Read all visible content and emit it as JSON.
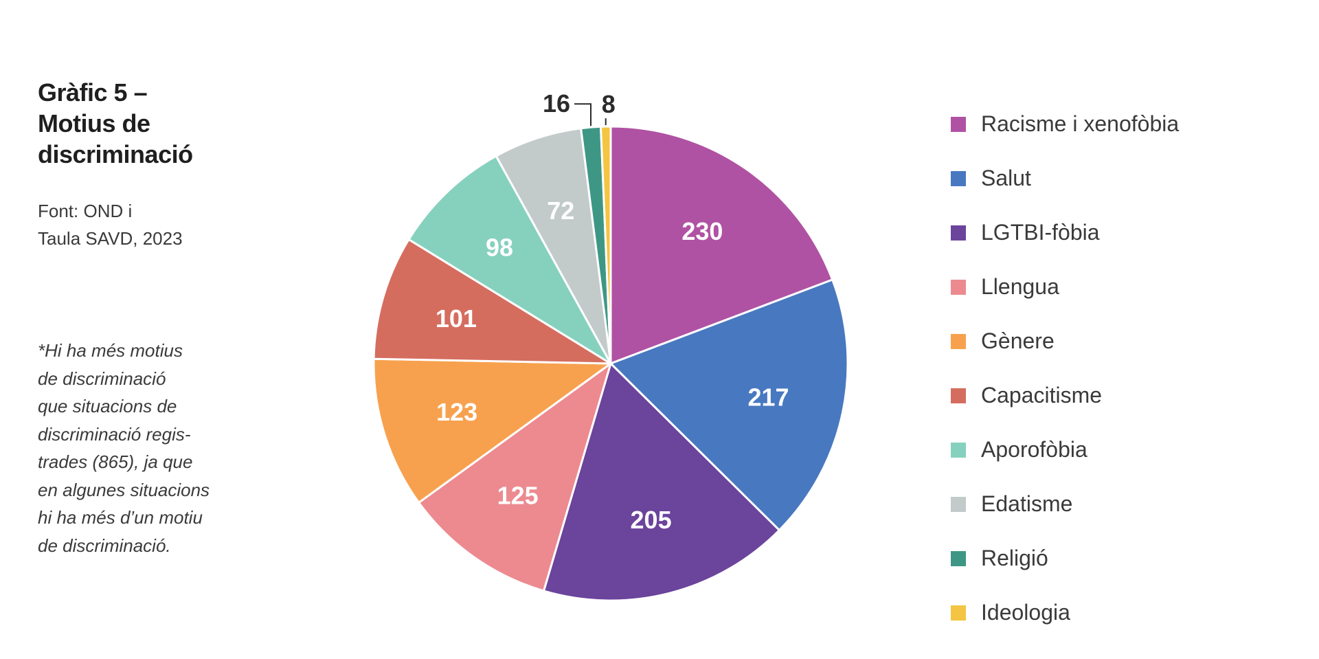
{
  "title_lines": [
    "Gràfic 5 –",
    "Motius de",
    "discriminació"
  ],
  "source_lines": [
    "Font: OND i",
    "Taula SAVD, 2023"
  ],
  "note_lines": [
    "*Hi ha més motius",
    "de discriminació",
    "que situacions de",
    "discriminació regis-",
    "trades (865), ja que",
    "en algunes situacions",
    "hi ha més d’un motiu",
    "de discriminació."
  ],
  "chart_data": {
    "type": "pie",
    "title": "Motius de discriminació",
    "start": "12 o'clock, clockwise",
    "legend_position": "right",
    "slices": [
      {
        "label": "Racisme i xenofòbia",
        "value": 230,
        "color": "#B052A3"
      },
      {
        "label": "Salut",
        "value": 217,
        "color": "#4878C0"
      },
      {
        "label": "LGTBI-fòbia",
        "value": 205,
        "color": "#6B449C"
      },
      {
        "label": "Llengua",
        "value": 125,
        "color": "#EC8A90"
      },
      {
        "label": "Gènere",
        "value": 123,
        "color": "#F7A14E"
      },
      {
        "label": "Capacitisme",
        "value": 101,
        "color": "#D56D5F"
      },
      {
        "label": "Aporofòbia",
        "value": 98,
        "color": "#86D1BE"
      },
      {
        "label": "Edatisme",
        "value": 72,
        "color": "#C3CACA"
      },
      {
        "label": "Religió",
        "value": 16,
        "color": "#3E9785"
      },
      {
        "label": "Ideologia",
        "value": 8,
        "color": "#F4C542"
      }
    ]
  }
}
